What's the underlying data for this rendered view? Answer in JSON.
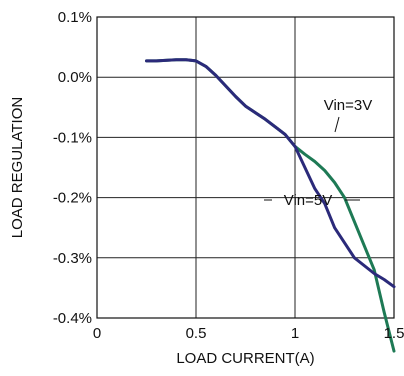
{
  "chart_data": {
    "type": "line",
    "title": "",
    "xlabel": "LOAD CURRENT(A)",
    "ylabel": "LOAD REGULATION",
    "xlim": [
      0,
      1.5
    ],
    "ylim": [
      -0.4,
      0.1
    ],
    "x_ticks": [
      {
        "value": 0,
        "label": "0"
      },
      {
        "value": 0.5,
        "label": "0.5"
      },
      {
        "value": 1.0,
        "label": "1"
      },
      {
        "value": 1.5,
        "label": "1.5"
      }
    ],
    "y_ticks": [
      {
        "value": 0.1,
        "label": "0.1%"
      },
      {
        "value": 0.0,
        "label": "0.0%"
      },
      {
        "value": -0.1,
        "label": "-0.1%"
      },
      {
        "value": -0.2,
        "label": "-0.2%"
      },
      {
        "value": -0.3,
        "label": "-0.3%"
      },
      {
        "value": -0.4,
        "label": "-0.4%"
      }
    ],
    "grid": true,
    "series": [
      {
        "name": "Vin=5V",
        "color": "#2b2a7a",
        "x": [
          0.25,
          0.3,
          0.4,
          0.45,
          0.5,
          0.55,
          0.6,
          0.7,
          0.75,
          0.85,
          0.95,
          1.0,
          1.05,
          1.1,
          1.15,
          1.2,
          1.3,
          1.4,
          1.45,
          1.5
        ],
        "y": [
          0.027,
          0.027,
          0.029,
          0.029,
          0.027,
          0.018,
          0.003,
          -0.032,
          -0.048,
          -0.07,
          -0.095,
          -0.115,
          -0.15,
          -0.185,
          -0.21,
          -0.25,
          -0.3,
          -0.326,
          -0.336,
          -0.348
        ]
      },
      {
        "name": "Vin=3V",
        "color": "#1e7a55",
        "x": [
          0.25,
          0.3,
          0.4,
          0.45,
          0.5,
          0.55,
          0.6,
          0.7,
          0.75,
          0.85,
          0.95,
          1.0,
          1.05,
          1.1,
          1.15,
          1.2,
          1.25,
          1.3,
          1.35,
          1.4,
          1.45,
          1.5
        ],
        "y": [
          0.027,
          0.027,
          0.029,
          0.029,
          0.027,
          0.018,
          0.003,
          -0.032,
          -0.048,
          -0.07,
          -0.095,
          -0.115,
          -0.128,
          -0.14,
          -0.155,
          -0.175,
          -0.2,
          -0.24,
          -0.28,
          -0.32,
          -0.39,
          -0.455
        ]
      }
    ],
    "annotations": [
      {
        "text": "Vin=3V",
        "series": "Vin=3V"
      },
      {
        "text": "Vin=5V",
        "series": "Vin=5V"
      }
    ]
  }
}
